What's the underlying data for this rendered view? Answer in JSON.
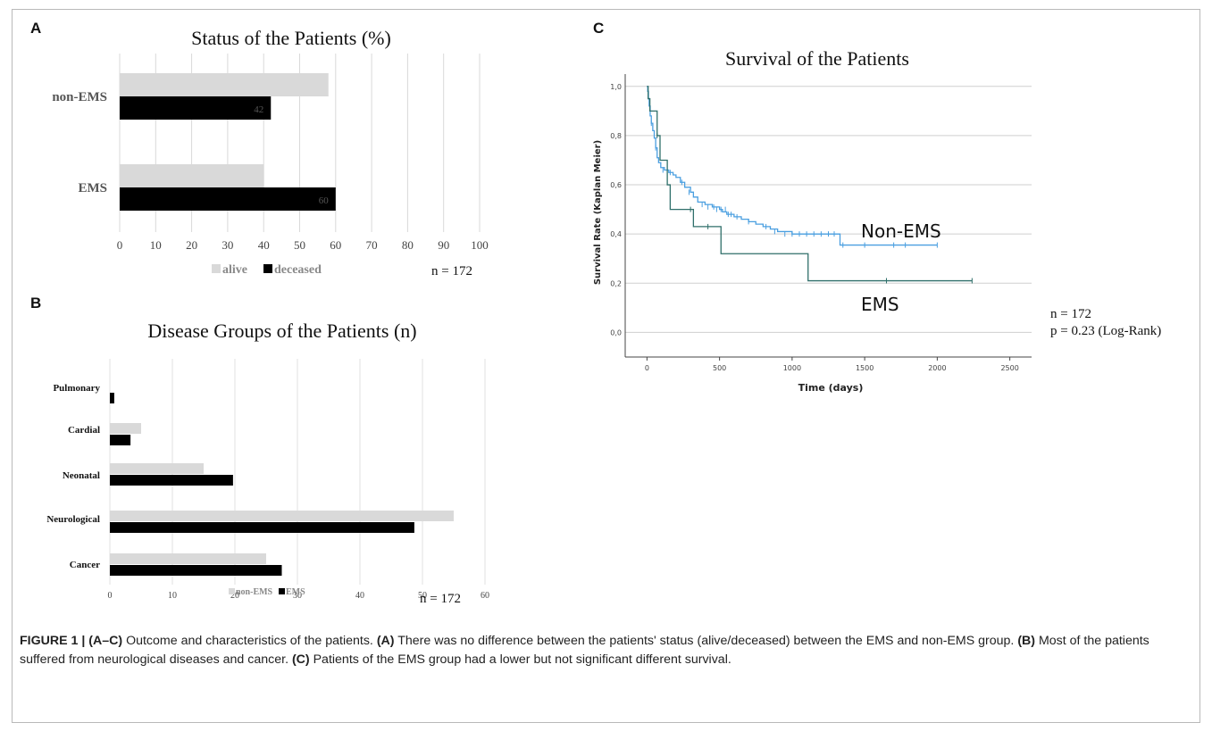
{
  "panels": {
    "A": {
      "letter": "A",
      "chart_data": {
        "type": "bar",
        "orientation": "horizontal",
        "title": "Status of the Patients (%)",
        "categories": [
          "non-EMS",
          "EMS"
        ],
        "series": [
          {
            "name": "alive",
            "color": "#d9d9d9",
            "values": [
              58,
              40
            ]
          },
          {
            "name": "deceased",
            "color": "#000000",
            "values": [
              42,
              60
            ]
          }
        ],
        "data_labels": {
          "deceased": [
            "42",
            "60"
          ]
        },
        "xlim": [
          0,
          100
        ],
        "xticks": [
          0,
          10,
          20,
          30,
          40,
          50,
          60,
          70,
          80,
          90,
          100
        ],
        "grid": true,
        "legend": "bottom",
        "annotation": "n = 172"
      }
    },
    "B": {
      "letter": "B",
      "chart_data": {
        "type": "bar",
        "orientation": "horizontal",
        "title": "Disease Groups of the Patients (n)",
        "categories": [
          "Pulmonary",
          "Cardial",
          "Neonatal",
          "Neurological",
          "Cancer"
        ],
        "series": [
          {
            "name": "non-EMS",
            "color": "#d9d9d9",
            "values": [
              0,
              5,
              15,
              55,
              25
            ]
          },
          {
            "name": "EMS",
            "color": "#000000",
            "values": [
              0.7,
              3.3,
              19.7,
              48.7,
              27.5
            ]
          }
        ],
        "xlim": [
          0,
          60
        ],
        "xticks": [
          0,
          10,
          20,
          30,
          40,
          50,
          60
        ],
        "grid": true,
        "legend": "bottom",
        "annotation": "n = 172"
      }
    },
    "C": {
      "letter": "C",
      "chart_data": {
        "type": "line",
        "step": true,
        "title": "Survival of the Patients",
        "xlabel": "Time (days)",
        "ylabel": "Survival Rate (Kaplan Meier)",
        "xlim": [
          -150,
          2650
        ],
        "ylim": [
          -0.1,
          1.05
        ],
        "xticks": [
          "0",
          "500",
          "1000",
          "1500",
          "2000",
          "2500"
        ],
        "xtick_values": [
          0,
          500,
          1000,
          1500,
          2000,
          2500
        ],
        "yticks": [
          "0,0",
          "0,2",
          "0,4",
          "0,6",
          "0,8",
          "1,0"
        ],
        "ytick_values": [
          0,
          0.2,
          0.4,
          0.6,
          0.8,
          1.0
        ],
        "grid": true,
        "series": [
          {
            "name": "Non-EMS",
            "color": "#4a9fe0",
            "points": [
              [
                0,
                1.0
              ],
              [
                5,
                0.98
              ],
              [
                10,
                0.95
              ],
              [
                15,
                0.92
              ],
              [
                22,
                0.88
              ],
              [
                30,
                0.85
              ],
              [
                40,
                0.82
              ],
              [
                50,
                0.79
              ],
              [
                60,
                0.75
              ],
              [
                70,
                0.71
              ],
              [
                80,
                0.69
              ],
              [
                95,
                0.67
              ],
              [
                120,
                0.66
              ],
              [
                150,
                0.65
              ],
              [
                180,
                0.64
              ],
              [
                200,
                0.63
              ],
              [
                230,
                0.61
              ],
              [
                260,
                0.59
              ],
              [
                300,
                0.57
              ],
              [
                320,
                0.55
              ],
              [
                350,
                0.53
              ],
              [
                400,
                0.52
              ],
              [
                450,
                0.51
              ],
              [
                500,
                0.5
              ],
              [
                520,
                0.49
              ],
              [
                550,
                0.48
              ],
              [
                600,
                0.47
              ],
              [
                650,
                0.46
              ],
              [
                700,
                0.45
              ],
              [
                750,
                0.44
              ],
              [
                800,
                0.43
              ],
              [
                850,
                0.42
              ],
              [
                900,
                0.41
              ],
              [
                1000,
                0.4
              ],
              [
                1300,
                0.4
              ],
              [
                1330,
                0.355
              ],
              [
                2000,
                0.355
              ]
            ],
            "censored": [
              [
                30,
                0.85
              ],
              [
                60,
                0.75
              ],
              [
                110,
                0.66
              ],
              [
                160,
                0.65
              ],
              [
                240,
                0.61
              ],
              [
                290,
                0.57
              ],
              [
                380,
                0.52
              ],
              [
                420,
                0.51
              ],
              [
                460,
                0.51
              ],
              [
                480,
                0.5
              ],
              [
                510,
                0.5
              ],
              [
                540,
                0.5
              ],
              [
                560,
                0.48
              ],
              [
                580,
                0.48
              ],
              [
                620,
                0.47
              ],
              [
                700,
                0.45
              ],
              [
                820,
                0.43
              ],
              [
                880,
                0.41
              ],
              [
                950,
                0.4
              ],
              [
                1000,
                0.4
              ],
              [
                1050,
                0.4
              ],
              [
                1100,
                0.4
              ],
              [
                1150,
                0.4
              ],
              [
                1200,
                0.4
              ],
              [
                1250,
                0.4
              ],
              [
                1290,
                0.4
              ],
              [
                1350,
                0.355
              ],
              [
                1500,
                0.355
              ],
              [
                1700,
                0.355
              ],
              [
                1780,
                0.355
              ],
              [
                2000,
                0.355
              ]
            ]
          },
          {
            "name": "EMS",
            "color": "#2f6f6a",
            "points": [
              [
                0,
                1.0
              ],
              [
                8,
                0.95
              ],
              [
                20,
                0.9
              ],
              [
                60,
                0.9
              ],
              [
                70,
                0.8
              ],
              [
                90,
                0.7
              ],
              [
                140,
                0.6
              ],
              [
                160,
                0.5
              ],
              [
                300,
                0.5
              ],
              [
                320,
                0.43
              ],
              [
                500,
                0.43
              ],
              [
                510,
                0.32
              ],
              [
                1100,
                0.32
              ],
              [
                1110,
                0.21
              ],
              [
                2240,
                0.21
              ]
            ],
            "censored": [
              [
                70,
                0.8
              ],
              [
                300,
                0.5
              ],
              [
                420,
                0.43
              ],
              [
                1650,
                0.21
              ],
              [
                2240,
                0.21
              ]
            ]
          }
        ],
        "annotations": [
          "n = 172",
          "p = 0.23 (Log-Rank)"
        ]
      }
    }
  },
  "caption": {
    "label": "FIGURE 1 | (A–C)",
    "intro": " Outcome and characteristics of the patients. ",
    "a_label": "(A)",
    "a_text": " There was no difference between the patients' status (alive/deceased) between the EMS and non-EMS group. ",
    "b_label": "(B)",
    "b_text": " Most of the patients suffered from neurological diseases and cancer. ",
    "c_label": "(C)",
    "c_text": " Patients of the EMS group had a lower but not significant different survival."
  }
}
